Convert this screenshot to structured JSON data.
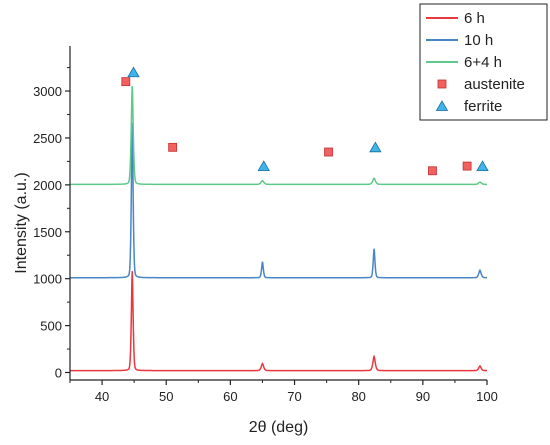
{
  "chart_data": {
    "type": "line",
    "title": "",
    "xlabel": "2θ (deg)",
    "ylabel": "Intensity (a.u.)",
    "xlim": [
      35,
      100
    ],
    "ylim": [
      -80,
      3480
    ],
    "xticks": [
      40,
      50,
      60,
      70,
      80,
      90,
      100
    ],
    "yticks": [
      0,
      500,
      1000,
      1500,
      2000,
      2500,
      3000
    ],
    "grid": false,
    "legend_position": "top-right",
    "series": [
      {
        "name": "6 h",
        "color": "#e8383d",
        "baseline": 20,
        "peaks": [
          {
            "x": 44.7,
            "height": 1060,
            "width": 0.22
          },
          {
            "x": 65.0,
            "height": 75,
            "width": 0.3
          },
          {
            "x": 82.4,
            "height": 150,
            "width": 0.3
          },
          {
            "x": 98.9,
            "height": 50,
            "width": 0.3
          }
        ]
      },
      {
        "name": "10 h",
        "color": "#4a86c5",
        "baseline": 1010,
        "peaks": [
          {
            "x": 44.7,
            "height": 1650,
            "width": 0.22
          },
          {
            "x": 65.0,
            "height": 170,
            "width": 0.22
          },
          {
            "x": 82.4,
            "height": 310,
            "width": 0.22
          },
          {
            "x": 98.9,
            "height": 80,
            "width": 0.3
          }
        ]
      },
      {
        "name": "6+4 h",
        "color": "#5ec98a",
        "baseline": 2005,
        "peaks": [
          {
            "x": 44.7,
            "height": 1050,
            "width": 0.25
          },
          {
            "x": 65.0,
            "height": 40,
            "width": 0.35
          },
          {
            "x": 82.4,
            "height": 65,
            "width": 0.35
          },
          {
            "x": 98.9,
            "height": 25,
            "width": 0.35
          }
        ]
      }
    ],
    "markers": [
      {
        "name": "austenite",
        "shape": "square",
        "fill": "#f26060",
        "stroke": "#c03030",
        "points": [
          {
            "x": 43.7,
            "y": 3100
          },
          {
            "x": 51.0,
            "y": 2400
          },
          {
            "x": 75.3,
            "y": 2350
          },
          {
            "x": 91.5,
            "y": 2150
          },
          {
            "x": 96.9,
            "y": 2200
          }
        ]
      },
      {
        "name": "ferrite",
        "shape": "triangle",
        "fill": "#3fb3ea",
        "stroke": "#1a6fa0",
        "points": [
          {
            "x": 44.9,
            "y": 3200
          },
          {
            "x": 65.2,
            "y": 2200
          },
          {
            "x": 82.6,
            "y": 2400
          },
          {
            "x": 99.3,
            "y": 2200
          }
        ]
      }
    ]
  }
}
